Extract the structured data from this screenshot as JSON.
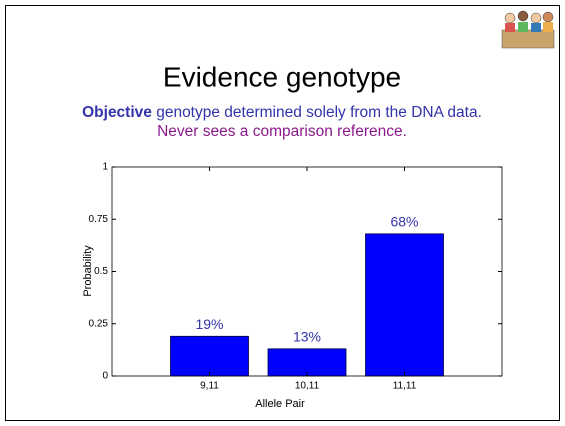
{
  "slide": {
    "title": "Evidence genotype",
    "objective_word": "Objective",
    "objective_text": "genotype determined solely from the DNA data.",
    "note": "Never sees a comparison reference."
  },
  "chart_data": {
    "type": "bar",
    "categories": [
      "9,11",
      "10,11",
      "11,11"
    ],
    "values": [
      0.19,
      0.13,
      0.68
    ],
    "value_labels": [
      "19%",
      "13%",
      "68%"
    ],
    "color": "#0000ff",
    "xlabel": "Allele Pair",
    "ylabel": "Probability",
    "ylim": [
      0,
      1
    ],
    "yticks": [
      0,
      0.25,
      0.5,
      0.75,
      1
    ]
  }
}
